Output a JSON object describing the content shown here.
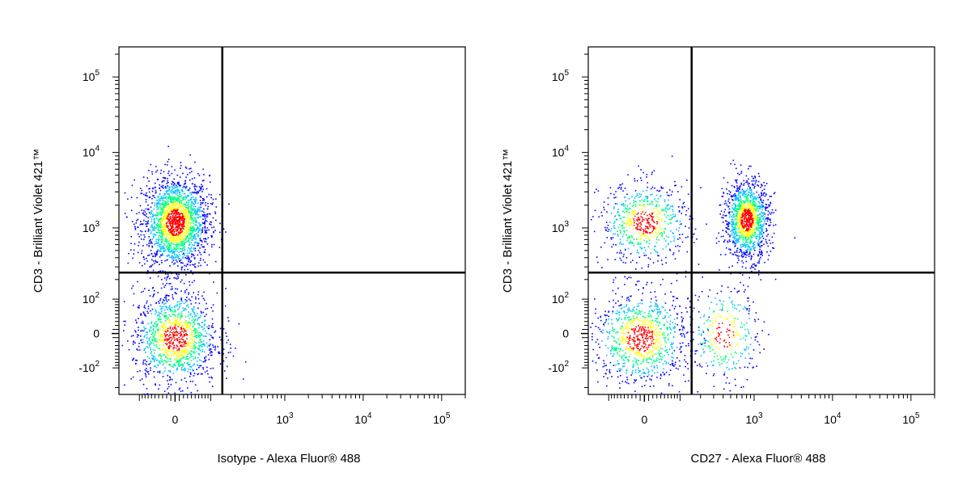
{
  "chart_data": [
    {
      "type": "scatter",
      "style": "flow-cytometry density dot plot with quadrant gates",
      "title": "",
      "xlabel": "Isotype - Alexa Fluor® 488",
      "ylabel": "CD3 - Brilliant Violet 421™",
      "x_scale": "biexponential",
      "y_scale": "biexponential",
      "xlim": [
        -200,
        200000
      ],
      "ylim": [
        -250,
        250000
      ],
      "x_tick_labels": [
        "0",
        "10^3",
        "10^4",
        "10^5"
      ],
      "y_tick_labels": [
        "-10^2",
        "0",
        "10^2",
        "10^3",
        "10^4",
        "10^5"
      ],
      "gate": {
        "x": 150,
        "y": 250
      },
      "density_colors": [
        "#0000ff",
        "#00c0ff",
        "#00ff80",
        "#ffff00",
        "#ff0000"
      ],
      "populations": [
        {
          "x_center": 0,
          "y_center": 1200,
          "x_range": [
            -80,
            120
          ],
          "y_range": [
            300,
            6000
          ],
          "share": 0.62
        },
        {
          "x_center": 0,
          "y_center": -10,
          "x_range": [
            -90,
            200
          ],
          "y_range": [
            -200,
            150
          ],
          "share": 0.38
        }
      ]
    },
    {
      "type": "scatter",
      "style": "flow-cytometry density dot plot with quadrant gates",
      "title": "",
      "xlabel": "CD27 - Alexa Fluor® 488",
      "ylabel": "CD3 - Brilliant Violet 421™",
      "x_scale": "biexponential",
      "y_scale": "biexponential",
      "xlim": [
        -200,
        200000
      ],
      "ylim": [
        -250,
        250000
      ],
      "x_tick_labels": [
        "0",
        "10^3",
        "10^4",
        "10^5"
      ],
      "y_tick_labels": [
        "-10^2",
        "0",
        "10^2",
        "10^3",
        "10^4",
        "10^5"
      ],
      "gate": {
        "x": 150,
        "y": 250
      },
      "density_colors": [
        "#0000ff",
        "#00c0ff",
        "#00ff80",
        "#ffff00",
        "#ff0000"
      ],
      "populations": [
        {
          "x_center": 800,
          "y_center": 1300,
          "x_range": [
            300,
            1200
          ],
          "y_range": [
            400,
            5000
          ],
          "share": 0.4
        },
        {
          "x_center": 0,
          "y_center": 1200,
          "x_range": [
            -150,
            150
          ],
          "y_range": [
            300,
            4000
          ],
          "share": 0.2
        },
        {
          "x_center": -10,
          "y_center": -10,
          "x_range": [
            -150,
            200
          ],
          "y_range": [
            -200,
            150
          ],
          "share": 0.3
        },
        {
          "x_center": 400,
          "y_center": 0,
          "x_range": [
            150,
            1500
          ],
          "y_range": [
            -180,
            200
          ],
          "share": 0.1
        }
      ]
    }
  ]
}
